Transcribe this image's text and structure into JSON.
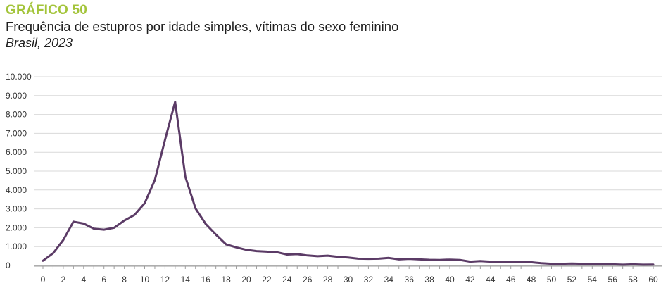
{
  "header": {
    "kicker": "GRÁFICO 50",
    "title": "Frequência de estupros por idade simples, vítimas do sexo feminino",
    "subtitle": "Brasil, 2023"
  },
  "colors": {
    "kicker": "#a3c43a",
    "line": "#5b3b66",
    "grid": "#d9d9d9"
  },
  "chart_data": {
    "type": "line",
    "title": "Frequência de estupros por idade simples, vítimas do sexo feminino",
    "subtitle": "Brasil, 2023",
    "xlabel": "",
    "ylabel": "",
    "ylim": [
      0,
      10000
    ],
    "yticks": [
      0,
      1000,
      2000,
      3000,
      4000,
      5000,
      6000,
      7000,
      8000,
      9000,
      10000
    ],
    "ytick_labels": [
      "0",
      "1.000",
      "2.000",
      "3.000",
      "4.000",
      "5.000",
      "6.000",
      "7.000",
      "8.000",
      "9.000",
      "10.000"
    ],
    "xticks": [
      0,
      2,
      4,
      6,
      8,
      10,
      12,
      14,
      16,
      18,
      20,
      22,
      24,
      26,
      28,
      30,
      32,
      34,
      36,
      38,
      40,
      42,
      44,
      46,
      48,
      50,
      52,
      54,
      56,
      58,
      60
    ],
    "grid": true,
    "legend": "none",
    "x": [
      0,
      1,
      2,
      3,
      4,
      5,
      6,
      7,
      8,
      9,
      10,
      11,
      12,
      13,
      14,
      15,
      16,
      17,
      18,
      19,
      20,
      21,
      22,
      23,
      24,
      25,
      26,
      27,
      28,
      29,
      30,
      31,
      32,
      33,
      34,
      35,
      36,
      37,
      38,
      39,
      40,
      41,
      42,
      43,
      44,
      45,
      46,
      47,
      48,
      49,
      50,
      51,
      52,
      53,
      54,
      55,
      56,
      57,
      58,
      59,
      60
    ],
    "series": [
      {
        "values": [
          250,
          650,
          1350,
          2320,
          2220,
          1950,
          1900,
          2000,
          2380,
          2680,
          3300,
          4520,
          6650,
          8670,
          4700,
          3020,
          2200,
          1640,
          1120,
          960,
          830,
          760,
          730,
          700,
          580,
          600,
          530,
          490,
          520,
          460,
          420,
          360,
          350,
          360,
          400,
          320,
          350,
          320,
          300,
          290,
          310,
          290,
          200,
          230,
          200,
          190,
          180,
          180,
          170,
          120,
          90,
          90,
          100,
          90,
          80,
          70,
          60,
          40,
          60,
          40,
          50
        ]
      }
    ]
  }
}
